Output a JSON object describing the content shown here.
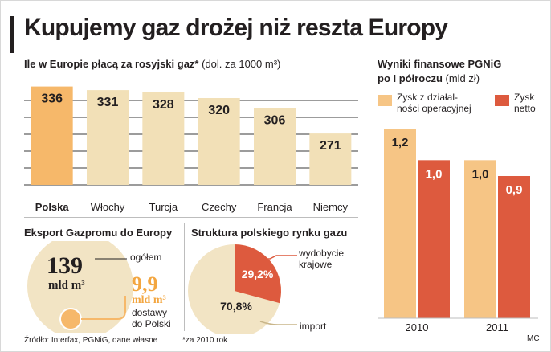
{
  "title": "Kupujemy gaz drożej niż reszta Europy",
  "gas_prices": {
    "heading": "Ile w Europie płacą za rosyjski gaz*",
    "unit": "(dol. za 1000 m³)"
  },
  "finance": {
    "heading_line1": "Wyniki finansowe PGNiG",
    "heading_line2": "po I półroczu",
    "unit": "(mld zł)",
    "legend1_line1": "Zysk z działal-",
    "legend1_line2": "ności operacyjnej",
    "legend2_line1": "Zysk",
    "legend2_line2": "netto"
  },
  "export": {
    "heading": "Eksport Gazpromu do Europy",
    "total_value": "139",
    "total_unit": "mld m³",
    "total_label": "ogółem",
    "poland_value": "9,9",
    "poland_unit": "mld m³",
    "poland_label_line1": "dostawy",
    "poland_label_line2": "do Polski"
  },
  "structure": {
    "heading": "Struktura polskiego rynku gazu",
    "slice1_value": "29,2%",
    "slice1_label_line1": "wydobycie",
    "slice1_label_line2": "krajowe",
    "slice2_value": "70,8%",
    "slice2_label": "import"
  },
  "footer": {
    "source": "Źródło: Interfax, PGNiG, dane własne",
    "note": "*za 2010 rok",
    "author": "MC"
  },
  "colors": {
    "highlight": "#f6b86a",
    "bar": "#f2e0b7",
    "green": "#f6c585",
    "red": "#dd5a3e",
    "dark": "#231f20",
    "circle": "#f2e4c4",
    "accent_text": "#f3a640"
  },
  "chart_data": [
    {
      "type": "bar",
      "title": "Ile w Europie płacą za rosyjski gaz*",
      "ylabel": "(dol. za 1000 m³)",
      "categories": [
        "Polska",
        "Włochy",
        "Turcja",
        "Czechy",
        "Francja",
        "Niemcy"
      ],
      "values": [
        336,
        331,
        328,
        320,
        306,
        271
      ],
      "highlight": "Polska",
      "grid": true
    },
    {
      "type": "bar",
      "title": "Wyniki finansowe PGNiG po I półroczu",
      "ylabel": "(mld zł)",
      "categories": [
        "2010",
        "2011"
      ],
      "series": [
        {
          "name": "Zysk z działalności operacyjnej",
          "values": [
            1.2,
            1.0
          ],
          "labels": [
            "1,2",
            "1,0"
          ]
        },
        {
          "name": "Zysk netto",
          "values": [
            1.0,
            0.9
          ],
          "labels": [
            "1,0",
            "0,9"
          ]
        }
      ],
      "legend": "top"
    },
    {
      "type": "pie",
      "title": "Struktura polskiego rynku gazu",
      "categories": [
        "wydobycie krajowe",
        "import"
      ],
      "values": [
        29.2,
        70.8
      ]
    },
    {
      "type": "area",
      "title": "Eksport Gazpromu do Europy",
      "categories": [
        "ogółem",
        "dostawy do Polski"
      ],
      "values": [
        139,
        9.9
      ],
      "ylabel": "mld m³"
    }
  ]
}
